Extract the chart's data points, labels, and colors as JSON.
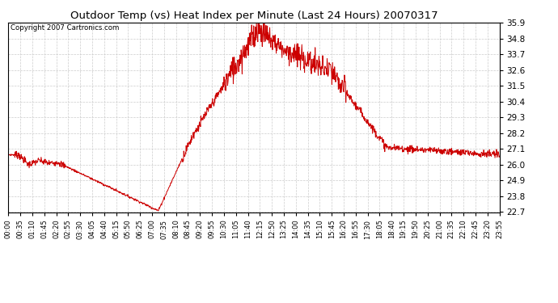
{
  "title": "Outdoor Temp (vs) Heat Index per Minute (Last 24 Hours) 20070317",
  "copyright": "Copyright 2007 Cartronics.com",
  "line_color": "#cc0000",
  "background_color": "#ffffff",
  "grid_color": "#cccccc",
  "yticks": [
    22.7,
    23.8,
    24.9,
    26.0,
    27.1,
    28.2,
    29.3,
    30.4,
    31.5,
    32.6,
    33.7,
    34.8,
    35.9
  ],
  "ylim": [
    22.7,
    35.9
  ],
  "xtick_labels": [
    "00:00",
    "00:35",
    "01:10",
    "01:45",
    "02:20",
    "02:55",
    "03:30",
    "04:05",
    "04:40",
    "05:15",
    "05:50",
    "06:25",
    "07:00",
    "07:35",
    "08:10",
    "08:45",
    "09:20",
    "09:55",
    "10:30",
    "11:05",
    "11:40",
    "12:15",
    "12:50",
    "13:25",
    "14:00",
    "14:35",
    "15:10",
    "15:45",
    "16:20",
    "16:55",
    "17:30",
    "18:05",
    "18:40",
    "19:15",
    "19:50",
    "20:25",
    "21:00",
    "21:35",
    "22:10",
    "22:45",
    "23:20",
    "23:55"
  ],
  "n_points": 1440
}
